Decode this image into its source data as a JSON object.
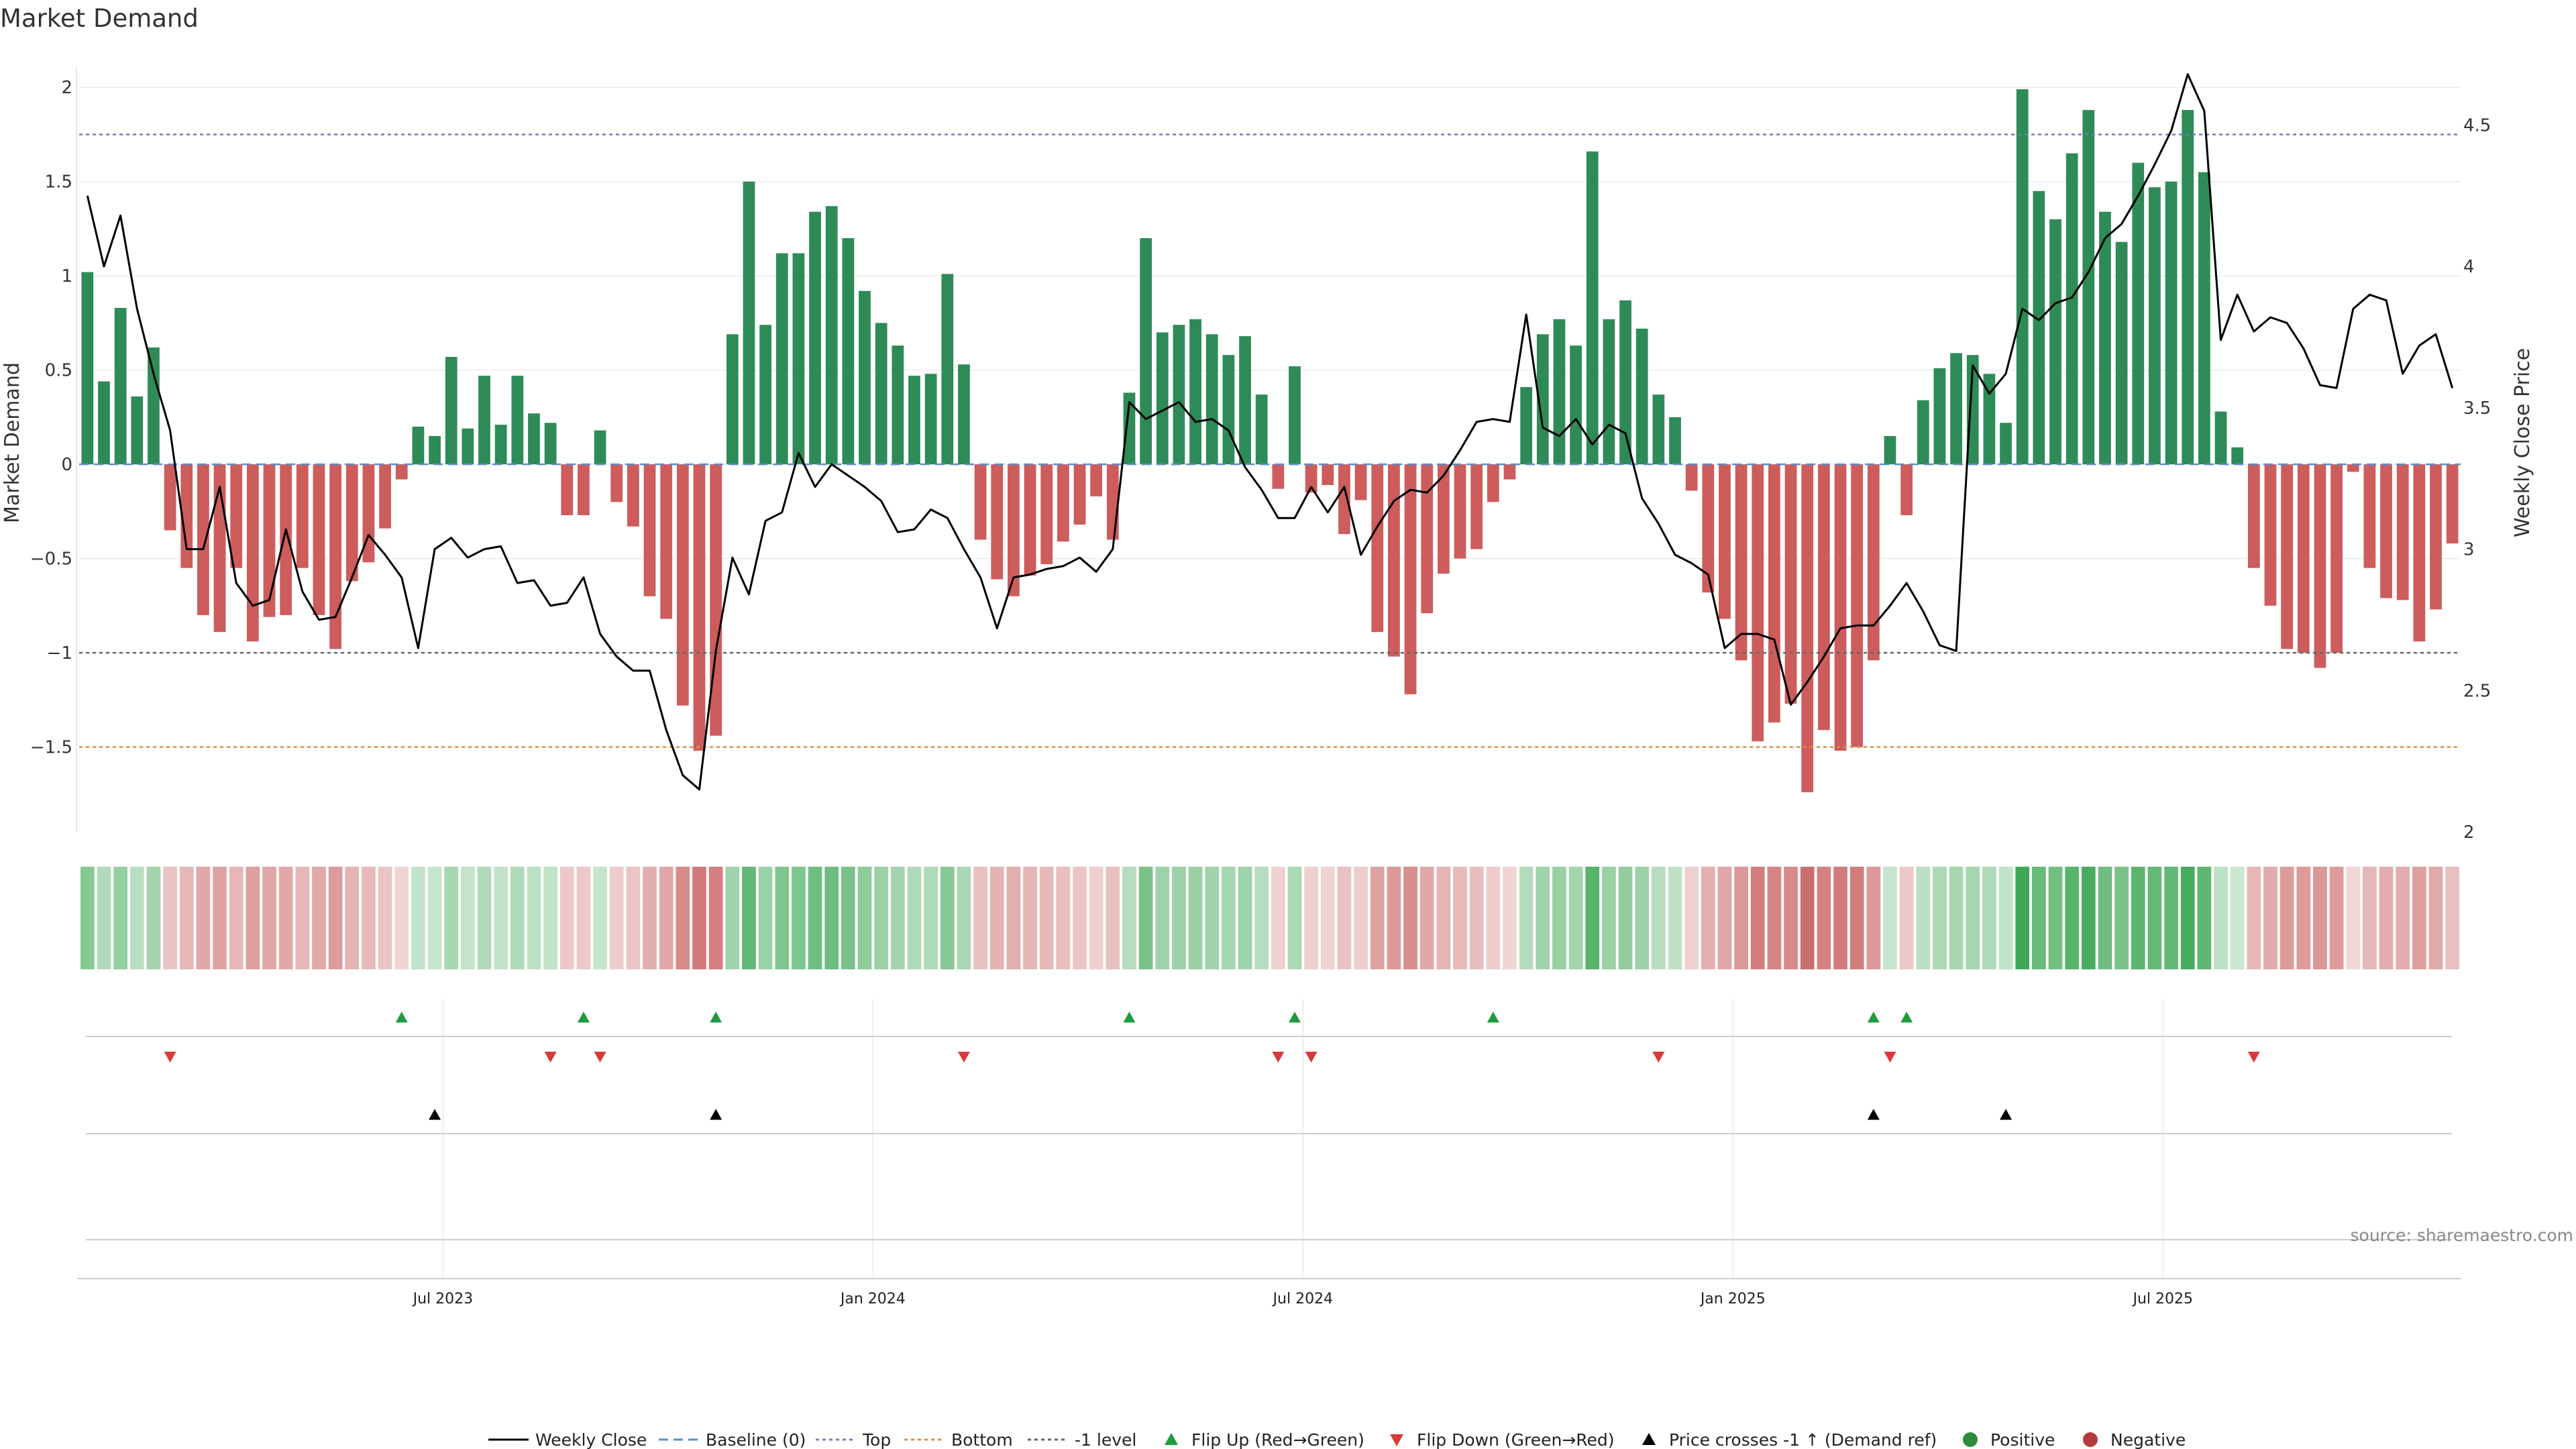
{
  "chart_data": {
    "type": "bar+line",
    "title": "Market Demand",
    "ylabel": "Market Demand",
    "y2label": "Weekly Close Price",
    "ylim": [
      -1.95,
      2.25
    ],
    "y2lim": [
      2.0,
      4.8
    ],
    "yticks": [
      "2",
      "1.5",
      "1",
      "0.5",
      "0",
      "−0.5",
      "−1",
      "−1.5"
    ],
    "y2ticks": [
      "4.5",
      "4",
      "3.5",
      "3",
      "2.5",
      "2"
    ],
    "xticks": [
      "Jul 2023",
      "Jan 2024",
      "Jul 2024",
      "Jan 2025",
      "Jul 2025"
    ],
    "xtick_weeks": [
      22,
      48,
      74,
      100,
      126
    ],
    "reference_lines": {
      "top": 1.75,
      "minus_one": -1.0,
      "bottom": -1.5
    },
    "demand": [
      1.02,
      0.44,
      0.83,
      0.36,
      0.62,
      -0.35,
      -0.55,
      -0.8,
      -0.89,
      -0.55,
      -0.94,
      -0.81,
      -0.8,
      -0.55,
      -0.8,
      -0.98,
      -0.62,
      -0.52,
      -0.34,
      -0.08,
      0.2,
      0.15,
      0.57,
      0.19,
      0.47,
      0.21,
      0.47,
      0.27,
      0.22,
      -0.27,
      -0.27,
      0.18,
      -0.2,
      -0.33,
      -0.7,
      -0.82,
      -1.28,
      -1.52,
      -1.44,
      0.69,
      1.5,
      0.74,
      1.12,
      1.12,
      1.34,
      1.37,
      1.2,
      0.92,
      0.75,
      0.63,
      0.47,
      0.48,
      1.01,
      0.53,
      -0.4,
      -0.61,
      -0.7,
      -0.59,
      -0.53,
      -0.41,
      -0.32,
      -0.17,
      -0.4,
      0.38,
      1.2,
      0.7,
      0.74,
      0.77,
      0.69,
      0.58,
      0.68,
      0.37,
      -0.13,
      0.52,
      -0.15,
      -0.11,
      -0.37,
      -0.19,
      -0.89,
      -1.02,
      -1.22,
      -0.79,
      -0.58,
      -0.5,
      -0.45,
      -0.2,
      -0.08,
      0.41,
      0.69,
      0.77,
      0.63,
      1.66,
      0.77,
      0.87,
      0.72,
      0.37,
      0.25,
      -0.14,
      -0.68,
      -0.82,
      -1.04,
      -1.47,
      -1.37,
      -1.27,
      -1.74,
      -1.41,
      -1.52,
      -1.5,
      -1.04,
      0.15,
      -0.27,
      0.34,
      0.51,
      0.59,
      0.58,
      0.48,
      0.22,
      1.99,
      1.45,
      1.3,
      1.65,
      1.88,
      1.34,
      1.18,
      1.6,
      1.47,
      1.5,
      1.88,
      1.55,
      0.28,
      0.09,
      -0.55,
      -0.75,
      -0.98,
      -1.0,
      -1.08,
      -1.0,
      -0.04,
      -0.55,
      -0.71,
      -0.72,
      -0.94,
      -0.77,
      -0.42
    ],
    "weekly_close": [
      4.25,
      4.0,
      4.18,
      3.85,
      3.62,
      3.42,
      3.0,
      3.0,
      3.22,
      2.88,
      2.8,
      2.82,
      3.07,
      2.85,
      2.75,
      2.76,
      2.9,
      3.05,
      2.98,
      2.9,
      2.65,
      3.0,
      3.04,
      2.97,
      3.0,
      3.01,
      2.88,
      2.89,
      2.8,
      2.81,
      2.9,
      2.7,
      2.62,
      2.57,
      2.57,
      2.36,
      2.2,
      2.15,
      2.64,
      2.97,
      2.84,
      3.1,
      3.13,
      3.34,
      3.22,
      3.3,
      3.26,
      3.22,
      3.17,
      3.06,
      3.07,
      3.14,
      3.11,
      3.0,
      2.9,
      2.72,
      2.9,
      2.91,
      2.93,
      2.94,
      2.97,
      2.92,
      3.0,
      3.52,
      3.46,
      3.49,
      3.52,
      3.45,
      3.46,
      3.42,
      3.29,
      3.21,
      3.11,
      3.11,
      3.22,
      3.13,
      3.22,
      2.98,
      3.08,
      3.17,
      3.21,
      3.2,
      3.26,
      3.35,
      3.45,
      3.46,
      3.45,
      3.83,
      3.43,
      3.4,
      3.46,
      3.37,
      3.44,
      3.41,
      3.18,
      3.09,
      2.98,
      2.95,
      2.91,
      2.65,
      2.7,
      2.7,
      2.68,
      2.45,
      2.53,
      2.62,
      2.72,
      2.73,
      2.73,
      2.8,
      2.88,
      2.78,
      2.66,
      2.64,
      3.65,
      3.55,
      3.62,
      3.85,
      3.81,
      3.87,
      3.89,
      3.98,
      4.1,
      4.15,
      4.25,
      4.36,
      4.48,
      4.68,
      4.55,
      3.74,
      3.9,
      3.77,
      3.82,
      3.8,
      3.71,
      3.58,
      3.57,
      3.85,
      3.9,
      3.88,
      3.62,
      3.72,
      3.76,
      3.57
    ],
    "flip_up_weeks": [
      19,
      30,
      38,
      63,
      73,
      85,
      108,
      110
    ],
    "flip_down_weeks": [
      5,
      28,
      31,
      53,
      72,
      74,
      95,
      109,
      131
    ],
    "price_cross_weeks": [
      21,
      38,
      108,
      116
    ],
    "legend": [
      "Weekly Close",
      "Baseline (0)",
      "Top",
      "Bottom",
      "-1 level",
      "Flip Up (Red→Green)",
      "Flip Down (Green→Red)",
      "Price crosses -1 ↑ (Demand ref)",
      "Positive",
      "Negative"
    ],
    "source": "source: sharemaestro.com"
  },
  "colors": {
    "positive": "#2e8b57",
    "negative": "#cd5c5c",
    "line": "#000000",
    "baseline": "#5b8fc9",
    "top": "#7b7bb5",
    "bottom": "#e0913f",
    "minus_one": "#666666",
    "flip_up": "#1f9b3f",
    "flip_down": "#d63a3a"
  }
}
